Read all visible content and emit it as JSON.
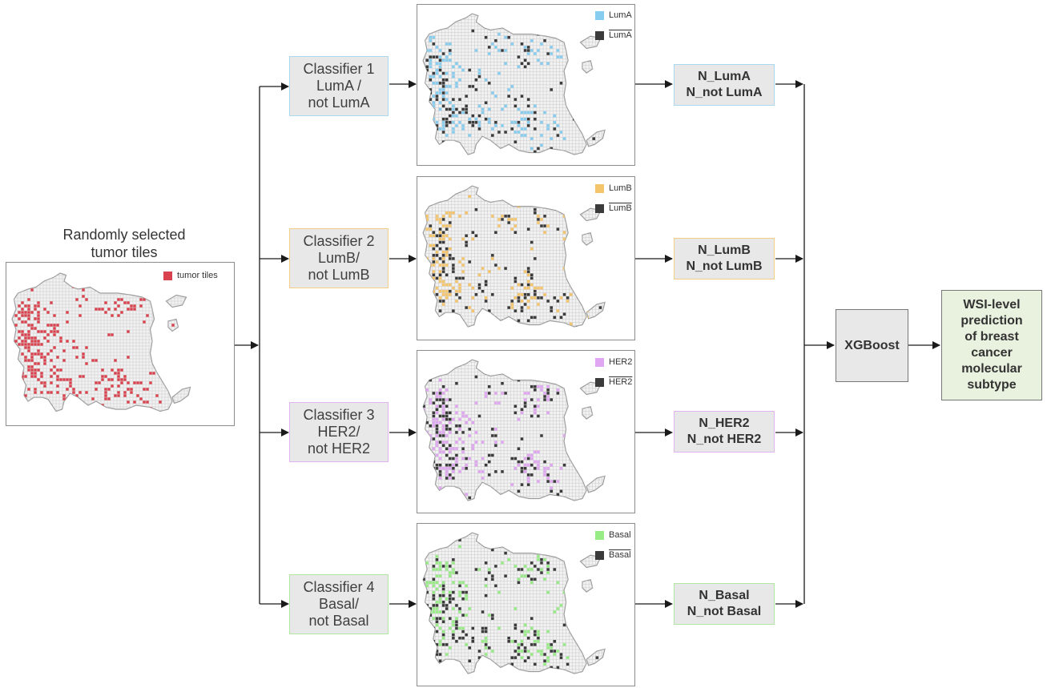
{
  "input": {
    "caption": [
      "Randomly selected",
      "tumor tiles"
    ],
    "legend": "tumor tiles",
    "color": "#d9414e"
  },
  "dark_color": "#3b3b3b",
  "branches": [
    {
      "id": "luma",
      "classifier": [
        "Classifier 1",
        "LumA /",
        "not LumA"
      ],
      "legend_pos": "LumA",
      "legend_neg": "LumA",
      "counts": [
        "N_LumA",
        "N_not LumA"
      ],
      "color": "#87cdf0",
      "border": "#a9d8ef"
    },
    {
      "id": "lumb",
      "classifier": [
        "Classifier 2",
        "LumB/",
        "not LumB"
      ],
      "legend_pos": "LumB",
      "legend_neg": "LumB",
      "counts": [
        "N_LumB",
        "N_not LumB"
      ],
      "color": "#f5c56c",
      "border": "#f3cf85"
    },
    {
      "id": "her2",
      "classifier": [
        "Classifier 3",
        "HER2/",
        "not HER2"
      ],
      "legend_pos": "HER2",
      "legend_neg": "HER2",
      "counts": [
        "N_HER2",
        "N_not HER2"
      ],
      "color": "#e0a6f2",
      "border": "#e2b3f1"
    },
    {
      "id": "basal",
      "classifier": [
        "Classifier 4",
        "Basal/",
        "not Basal"
      ],
      "legend_pos": "Basal",
      "legend_neg": "Basal",
      "counts": [
        "N_Basal",
        "N_not Basal"
      ],
      "color": "#98ec86",
      "border": "#b1e6a3"
    }
  ],
  "model": {
    "label": "XGBoost"
  },
  "output": {
    "lines": [
      "WSI-level",
      "prediction",
      "of breast",
      "cancer",
      "molecular",
      "subtype"
    ]
  }
}
